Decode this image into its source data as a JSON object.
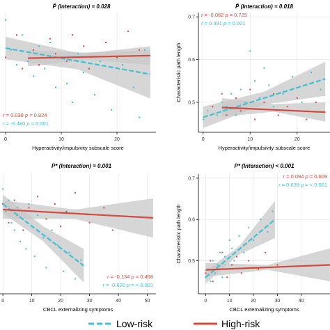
{
  "colors": {
    "low": "#3fc1d1",
    "high": "#d24a3f",
    "ci": "#c8c8c8",
    "grid": "#000000"
  },
  "legend": {
    "position": "bottom",
    "low_label": "Low-risk",
    "high_label": "High-risk"
  },
  "chart_data": [
    {
      "type": "scatter",
      "title": "P̃ (Interaction) = 0.028",
      "xlabel": "Hyperactivity/impulsivity subscale score",
      "ylabel": "",
      "xlim": [
        -1,
        27
      ],
      "ylim": [
        0.4,
        0.72
      ],
      "xticks": [
        0,
        10,
        20
      ],
      "yticks": [],
      "yticklabels": [],
      "series": [
        {
          "group": "low",
          "points": [
            [
              0,
              0.7
            ],
            [
              1,
              0.62
            ],
            [
              2,
              0.58
            ],
            [
              3,
              0.66
            ],
            [
              4,
              0.59
            ],
            [
              5,
              0.55
            ],
            [
              6,
              0.63
            ],
            [
              7,
              0.57
            ],
            [
              8,
              0.64
            ],
            [
              9,
              0.52
            ],
            [
              10,
              0.6
            ],
            [
              11,
              0.53
            ],
            [
              12,
              0.48
            ],
            [
              13,
              0.61
            ],
            [
              14,
              0.56
            ],
            [
              16,
              0.5
            ],
            [
              17,
              0.59
            ],
            [
              19,
              0.46
            ],
            [
              21,
              0.58
            ],
            [
              23,
              0.52
            ],
            [
              24,
              0.44
            ],
            [
              25,
              0.62
            ]
          ],
          "fit": [
            [
              0,
              0.625
            ],
            [
              26,
              0.555
            ]
          ],
          "ci_upper": [
            [
              0,
              0.655
            ],
            [
              13,
              0.612
            ],
            [
              26,
              0.62
            ]
          ],
          "ci_lower": [
            [
              0,
              0.595
            ],
            [
              13,
              0.568
            ],
            [
              26,
              0.49
            ]
          ]
        },
        {
          "group": "high",
          "points": [
            [
              0,
              0.6
            ],
            [
              2,
              0.66
            ],
            [
              3,
              0.57
            ],
            [
              5,
              0.62
            ],
            [
              6,
              0.58
            ],
            [
              8,
              0.65
            ],
            [
              9,
              0.61
            ],
            [
              11,
              0.59
            ],
            [
              12,
              0.66
            ],
            [
              14,
              0.63
            ],
            [
              15,
              0.57
            ],
            [
              18,
              0.64
            ],
            [
              20,
              0.6
            ],
            [
              22,
              0.67
            ],
            [
              24,
              0.62
            ]
          ],
          "fit": [
            [
              4,
              0.598
            ],
            [
              26,
              0.605
            ]
          ],
          "ci_upper": [
            [
              4,
              0.62
            ],
            [
              15,
              0.612
            ],
            [
              26,
              0.63
            ]
          ],
          "ci_lower": [
            [
              4,
              0.576
            ],
            [
              15,
              0.594
            ],
            [
              26,
              0.58
            ]
          ]
        }
      ],
      "stats": [
        {
          "group": "high",
          "r": "0.039",
          "p": "0.824"
        },
        {
          "group": "low",
          "r": "-0.480",
          "p": "0.001"
        }
      ],
      "stats_position": "bottom-left"
    },
    {
      "type": "scatter",
      "title": "P̃ (Interaction) = 0.018",
      "xlabel": "Hyperactivity/impulsivity subscale score",
      "ylabel": "Characteristic path length",
      "xlim": [
        -1,
        27
      ],
      "ylim": [
        0.43,
        0.71
      ],
      "xticks": [
        0,
        10,
        20
      ],
      "yticks": [
        0.5,
        0.6,
        0.7
      ],
      "yticklabels": [
        "0.5",
        "0.6",
        "0.7"
      ],
      "series": [
        {
          "group": "low",
          "points": [
            [
              0,
              0.46
            ],
            [
              1,
              0.48
            ],
            [
              3,
              0.47
            ],
            [
              4,
              0.5
            ],
            [
              5,
              0.49
            ],
            [
              6,
              0.52
            ],
            [
              7,
              0.47
            ],
            [
              8,
              0.53
            ],
            [
              9,
              0.5
            ],
            [
              10,
              0.62
            ],
            [
              11,
              0.55
            ],
            [
              12,
              0.51
            ],
            [
              13,
              0.58
            ],
            [
              14,
              0.54
            ],
            [
              15,
              0.49
            ],
            [
              17,
              0.52
            ],
            [
              19,
              0.56
            ],
            [
              21,
              0.5
            ],
            [
              23,
              0.57
            ],
            [
              25,
              0.53
            ]
          ],
          "fit": [
            [
              0,
              0.465
            ],
            [
              26,
              0.555
            ]
          ],
          "ci_upper": [
            [
              0,
              0.49
            ],
            [
              13,
              0.525
            ],
            [
              26,
              0.595
            ]
          ],
          "ci_lower": [
            [
              0,
              0.44
            ],
            [
              13,
              0.495
            ],
            [
              26,
              0.515
            ]
          ]
        },
        {
          "group": "high",
          "points": [
            [
              2,
              0.49
            ],
            [
              4,
              0.52
            ],
            [
              5,
              0.47
            ],
            [
              7,
              0.51
            ],
            [
              8,
              0.48
            ],
            [
              10,
              0.53
            ],
            [
              11,
              0.46
            ],
            [
              13,
              0.5
            ],
            [
              15,
              0.52
            ],
            [
              16,
              0.47
            ],
            [
              18,
              0.49
            ],
            [
              20,
              0.51
            ],
            [
              22,
              0.46
            ],
            [
              24,
              0.5
            ]
          ],
          "fit": [
            [
              4,
              0.488
            ],
            [
              26,
              0.477
            ]
          ],
          "ci_upper": [
            [
              4,
              0.51
            ],
            [
              15,
              0.496
            ],
            [
              26,
              0.5
            ]
          ],
          "ci_lower": [
            [
              4,
              0.466
            ],
            [
              15,
              0.478
            ],
            [
              26,
              0.455
            ]
          ]
        }
      ],
      "stats": [
        {
          "group": "high",
          "r": "-0.062",
          "p": "0.725"
        },
        {
          "group": "low",
          "r": "0.491",
          "p": "0.001"
        }
      ],
      "stats_position": "top-left"
    },
    {
      "type": "scatter",
      "title": "P* (Interaction) = 0.001",
      "xlabel": "CBCL externalizing symptoms",
      "ylabel": "",
      "xlim": [
        -1,
        53
      ],
      "ylim": [
        0.38,
        0.7
      ],
      "xticks": [
        0,
        10,
        20,
        30,
        40,
        50
      ],
      "yticks": [],
      "yticklabels": [],
      "series": [
        {
          "group": "low",
          "points": [
            [
              0,
              0.66
            ],
            [
              1,
              0.6
            ],
            [
              2,
              0.63
            ],
            [
              3,
              0.57
            ],
            [
              4,
              0.55
            ],
            [
              5,
              0.61
            ],
            [
              6,
              0.52
            ],
            [
              7,
              0.58
            ],
            [
              8,
              0.5
            ],
            [
              9,
              0.62
            ],
            [
              10,
              0.56
            ],
            [
              11,
              0.48
            ],
            [
              12,
              0.59
            ],
            [
              14,
              0.53
            ],
            [
              15,
              0.45
            ],
            [
              17,
              0.55
            ],
            [
              19,
              0.51
            ],
            [
              21,
              0.44
            ],
            [
              23,
              0.49
            ],
            [
              25,
              0.42
            ],
            [
              27,
              0.47
            ]
          ],
          "fit": [
            [
              0,
              0.62
            ],
            [
              28,
              0.455
            ]
          ],
          "ci_upper": [
            [
              0,
              0.645
            ],
            [
              14,
              0.56
            ],
            [
              28,
              0.5
            ]
          ],
          "ci_lower": [
            [
              0,
              0.595
            ],
            [
              14,
              0.52
            ],
            [
              28,
              0.41
            ]
          ]
        },
        {
          "group": "high",
          "points": [
            [
              0,
              0.62
            ],
            [
              2,
              0.57
            ],
            [
              4,
              0.63
            ],
            [
              5,
              0.59
            ],
            [
              7,
              0.55
            ],
            [
              9,
              0.61
            ],
            [
              12,
              0.64
            ],
            [
              15,
              0.58
            ],
            [
              18,
              0.62
            ],
            [
              20,
              0.56
            ],
            [
              22,
              0.6
            ],
            [
              25,
              0.65
            ],
            [
              30,
              0.57
            ],
            [
              35,
              0.61
            ],
            [
              38,
              0.55
            ]
          ],
          "fit": [
            [
              0,
              0.605
            ],
            [
              52,
              0.583
            ]
          ],
          "ci_upper": [
            [
              0,
              0.63
            ],
            [
              25,
              0.605
            ],
            [
              52,
              0.635
            ]
          ],
          "ci_lower": [
            [
              0,
              0.58
            ],
            [
              25,
              0.58
            ],
            [
              52,
              0.53
            ]
          ]
        }
      ],
      "stats": [
        {
          "group": "high",
          "r": "-0.134",
          "p": "0.458"
        },
        {
          "group": "low",
          "r": "-0.620",
          "p": "< 0.001"
        }
      ],
      "stats_position": "bottom-right"
    },
    {
      "type": "scatter",
      "title": "P* (Interaction) < 0.001",
      "xlabel": "CBCL externalizing symptoms",
      "ylabel": "Characteristic path length",
      "xlim": [
        -3,
        52
      ],
      "ylim": [
        0.42,
        0.71
      ],
      "xticks": [
        0,
        10,
        20,
        30,
        40
      ],
      "yticks": [
        0.5,
        0.6,
        0.7
      ],
      "yticklabels": [
        "0.5",
        "0.6",
        "0.7"
      ],
      "series": [
        {
          "group": "low",
          "points": [
            [
              0,
              0.46
            ],
            [
              1,
              0.48
            ],
            [
              2,
              0.45
            ],
            [
              3,
              0.5
            ],
            [
              4,
              0.47
            ],
            [
              5,
              0.49
            ],
            [
              6,
              0.52
            ],
            [
              7,
              0.46
            ],
            [
              8,
              0.51
            ],
            [
              9,
              0.48
            ],
            [
              10,
              0.55
            ],
            [
              11,
              0.53
            ],
            [
              12,
              0.5
            ],
            [
              14,
              0.56
            ],
            [
              16,
              0.52
            ],
            [
              18,
              0.58
            ],
            [
              20,
              0.55
            ],
            [
              23,
              0.6
            ],
            [
              26,
              0.57
            ],
            [
              28,
              0.62
            ]
          ],
          "fit": [
            [
              0,
              0.46
            ],
            [
              29,
              0.6
            ]
          ],
          "ci_upper": [
            [
              0,
              0.475
            ],
            [
              14,
              0.535
            ],
            [
              29,
              0.645
            ]
          ],
          "ci_lower": [
            [
              0,
              0.445
            ],
            [
              14,
              0.515
            ],
            [
              29,
              0.555
            ]
          ]
        },
        {
          "group": "high",
          "points": [
            [
              0,
              0.47
            ],
            [
              2,
              0.5
            ],
            [
              3,
              0.45
            ],
            [
              5,
              0.48
            ],
            [
              7,
              0.52
            ],
            [
              9,
              0.46
            ],
            [
              11,
              0.49
            ],
            [
              13,
              0.51
            ],
            [
              15,
              0.47
            ],
            [
              18,
              0.5
            ],
            [
              22,
              0.48
            ],
            [
              25,
              0.52
            ],
            [
              30,
              0.49
            ]
          ],
          "fit": [
            [
              0,
              0.478
            ],
            [
              52,
              0.49
            ]
          ],
          "ci_upper": [
            [
              0,
              0.495
            ],
            [
              26,
              0.49
            ],
            [
              52,
              0.53
            ]
          ],
          "ci_lower": [
            [
              0,
              0.461
            ],
            [
              26,
              0.478
            ],
            [
              52,
              0.45
            ]
          ]
        }
      ],
      "stats": [
        {
          "group": "high",
          "r": "0.094",
          "p": "0.609"
        },
        {
          "group": "low",
          "r": "0.639",
          "p": "< 0.001"
        }
      ],
      "stats_position": "top-right"
    }
  ]
}
